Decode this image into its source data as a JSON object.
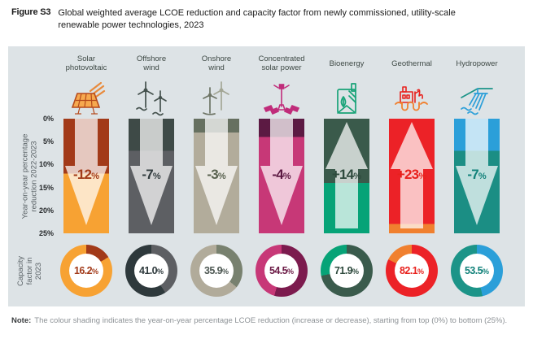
{
  "figure": {
    "tag": "Figure S3",
    "title_line1": "Global weighted average LCOE reduction and capacity factor from newly commissioned, utility-scale",
    "title_line2": "renewable power technologies, 2023"
  },
  "axis": {
    "arrow_axis_line1": "Year-on-year percentage",
    "arrow_axis_line2": "reduction 2022-2023",
    "ticks": [
      "0%",
      "5%",
      "10%",
      "15%",
      "20%",
      "25%"
    ],
    "donut_axis_line1": "Capacity",
    "donut_axis_line2": "factor in",
    "donut_axis_line3": "2023"
  },
  "units": {
    "percent_sign": "%"
  },
  "note": {
    "label": "Note:",
    "text": "The colour shading indicates the year-on-year percentage LCOE reduction (increase or decrease), starting from top (0%) to bottom (25%)."
  },
  "panel_bg": "#DDE3E6",
  "columns": [
    {
      "label": "Solar photovoltaic",
      "icon": "solar-panel-icon",
      "lcoe_change": "-12",
      "direction": "down",
      "split_pct": 48,
      "capacity_factor": "16.2",
      "donut_first_pct": 16.2,
      "colors": {
        "top": "#A23A19",
        "bottom": "#F7A233",
        "value_text": "#A23A19",
        "donut_first": "#A23A19",
        "donut_rest": "#F7A233",
        "donut_text": "#A23A19"
      }
    },
    {
      "label": "Offshore wind",
      "icon": "offshore-wind-icon",
      "lcoe_change": "-7",
      "direction": "down",
      "split_pct": 28,
      "capacity_factor": "41.0",
      "donut_first_pct": 41.0,
      "colors": {
        "top": "#3E4A47",
        "bottom": "#5D5F63",
        "value_text": "#323C3F",
        "donut_first": "#5D5F63",
        "donut_rest": "#2E393C",
        "donut_text": "#2E393C"
      }
    },
    {
      "label": "Onshore wind",
      "icon": "onshore-wind-icon",
      "lcoe_change": "-3",
      "direction": "down",
      "split_pct": 12,
      "capacity_factor": "35.9",
      "donut_first_pct": 35.9,
      "colors": {
        "top": "#667060",
        "bottom": "#B2AC9B",
        "value_text": "#59624F",
        "donut_first": "#78816F",
        "donut_rest": "#B1AB9A",
        "donut_text": "#4E5853"
      }
    },
    {
      "label": "Concentrated solar power",
      "icon": "csp-tower-icon",
      "lcoe_change": "-4",
      "direction": "down",
      "split_pct": 16,
      "capacity_factor": "54.5",
      "donut_first_pct": 54.5,
      "colors": {
        "top": "#5C1A43",
        "bottom": "#C73877",
        "value_text": "#5C1A43",
        "donut_first": "#7C1B4E",
        "donut_rest": "#C73877",
        "donut_text": "#6B1A45"
      }
    },
    {
      "label": "Bioenergy",
      "icon": "bioenergy-plant-icon",
      "lcoe_change": "+14",
      "direction": "up",
      "split_pct": 56,
      "capacity_factor": "71.9",
      "donut_first_pct": 71.9,
      "colors": {
        "top": "#3A5A4B",
        "bottom": "#06A377",
        "value_text": "#2E4A3D",
        "donut_first": "#3A5B4C",
        "donut_rest": "#07A377",
        "donut_text": "#2E4A3D"
      }
    },
    {
      "label": "Geothermal",
      "icon": "geothermal-plant-icon",
      "lcoe_change": "+23",
      "direction": "up",
      "split_pct": 92,
      "capacity_factor": "82.1",
      "donut_first_pct": 82.1,
      "colors": {
        "top": "#EC2227",
        "bottom": "#F0802F",
        "value_text": "#E8211D",
        "donut_first": "#EC2227",
        "donut_rest": "#F0802F",
        "donut_text": "#E8211D"
      }
    },
    {
      "label": "Hydropower",
      "icon": "hydropower-dam-icon",
      "lcoe_change": "-7",
      "direction": "down",
      "split_pct": 28,
      "capacity_factor": "53.5",
      "donut_first_pct": 46.5,
      "colors": {
        "top": "#2B9FD9",
        "bottom": "#1B8E84",
        "value_text": "#12827A",
        "donut_first": "#2B9FD9",
        "donut_rest": "#1C9488",
        "donut_text": "#12827A"
      }
    }
  ],
  "chart_data": [
    {
      "type": "bar",
      "title": "Year-on-year percentage LCOE reduction 2022-2023",
      "categories": [
        "Solar photovoltaic",
        "Offshore wind",
        "Onshore wind",
        "Concentrated solar power",
        "Bioenergy",
        "Geothermal",
        "Hydropower"
      ],
      "values": [
        -12,
        -7,
        -3,
        -4,
        14,
        23,
        -7
      ],
      "unit": "%",
      "xlabel": "",
      "ylabel": "Year-on-year percentage reduction 2022-2023",
      "ylim": [
        0,
        25
      ],
      "axis_ticks": [
        "0%",
        "5%",
        "10%",
        "15%",
        "20%",
        "25%"
      ],
      "note": "Arrows point down for LCOE decreases and up for increases; colour split marks the value on the 0-25% scale from top to bottom"
    },
    {
      "type": "pie",
      "title": "Capacity factor in 2023",
      "categories": [
        "Solar photovoltaic",
        "Offshore wind",
        "Onshore wind",
        "Concentrated solar power",
        "Bioenergy",
        "Geothermal",
        "Hydropower"
      ],
      "values": [
        16.2,
        41.0,
        35.9,
        54.5,
        71.9,
        82.1,
        53.5
      ],
      "unit": "%",
      "note": "Rendered as seven donut gauges, one per technology"
    }
  ]
}
